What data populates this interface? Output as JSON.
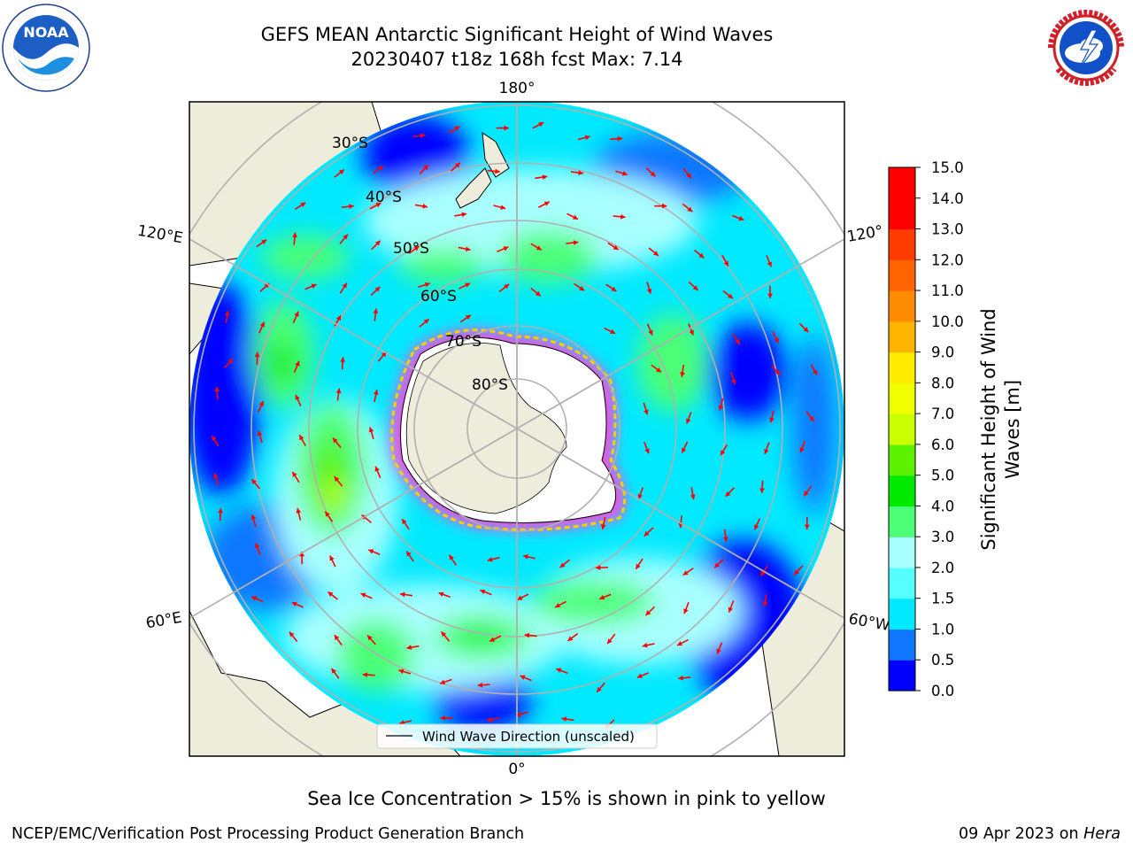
{
  "header": {
    "title_line1": "GEFS MEAN Antarctic Significant Height of Wind Waves",
    "title_line2": "20230407 t18z 168h fcst   Max: 7.14"
  },
  "logos": {
    "left": {
      "icon": "noaa-logo",
      "text": "NOAA",
      "ring_text": "NATIONAL OCEANIC AND ATMOSPHERIC ADMINISTRATION · U.S. DEPARTMENT OF COMMERCE"
    },
    "right": {
      "icon": "national-weather-service-logo",
      "ring_text": "NATIONAL WEATHER SERVICE"
    }
  },
  "map": {
    "projection": "south-polar-stereographic",
    "lon_labels": {
      "top": "180°",
      "bottom": "0°",
      "upper_left": "120°E",
      "lower_left": "60°E",
      "upper_right": "120°",
      "lower_right": "60°W"
    },
    "lat_labels": [
      "30°S",
      "40°S",
      "50°S",
      "60°S",
      "70°S",
      "80°S"
    ],
    "colors": {
      "land": "#eeecdb",
      "ice_sheet": "#ffffff",
      "ice_edge": [
        "#ff44dd",
        "#ffcc00"
      ],
      "arrow": "#ff0000",
      "grid": "#b0b0b0"
    },
    "legend_label": "Wind Wave Direction (unscaled)"
  },
  "colorbar": {
    "label_line1": "Significant Height of Wind",
    "label_line2": "Waves [m]",
    "min": 0.0,
    "max": 15.0,
    "ticks": [
      "0.0",
      "0.5",
      "1.0",
      "1.5",
      "2.0",
      "3.0",
      "4.0",
      "5.0",
      "6.0",
      "7.0",
      "8.0",
      "9.0",
      "10.0",
      "11.0",
      "12.0",
      "13.0",
      "14.0",
      "15.0"
    ],
    "colors": [
      "#0000ff",
      "#0f77ff",
      "#00e9ff",
      "#56ffff",
      "#a9ffff",
      "#4cff76",
      "#00ea00",
      "#5cf200",
      "#c9ff00",
      "#f0ff00",
      "#ffec00",
      "#ffb400",
      "#ff8c00",
      "#ff6400",
      "#ff3c00",
      "#ff0000",
      "#ff0000"
    ]
  },
  "caption": "Sea Ice Concentration > 15% is shown in pink to yellow",
  "footer": {
    "left": "NCEP/EMC/Verification Post Processing Product Generation Branch",
    "right_date": "09 Apr 2023 on",
    "right_host": "Hera"
  }
}
